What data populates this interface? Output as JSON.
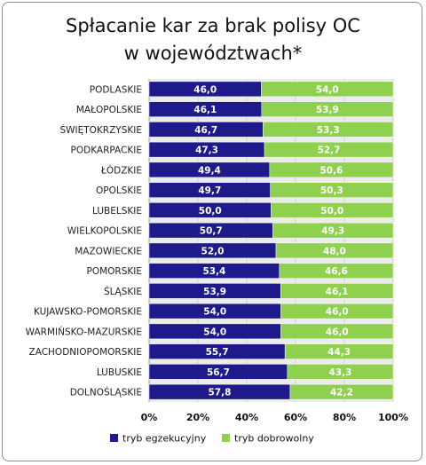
{
  "chart_data": {
    "type": "bar",
    "orientation": "horizontal",
    "stacked": true,
    "title_lines": [
      "Spłacanie kar za brak polisy OC",
      "w województwach*"
    ],
    "categories": [
      "PODLASKIE",
      "MAŁOPOLSKIE",
      "ŚWIĘTOKRZYSKIE",
      "PODKARPACKIE",
      "ŁÓDZKIE",
      "OPOLSKIE",
      "LUBELSKIE",
      "WIELKOPOLSKIE",
      "MAZOWIECKIE",
      "POMORSKIE",
      "ŚLĄSKIE",
      "KUJAWSKO-POMORSKIE",
      "WARMIŃSKO-MAZURSKIE",
      "ZACHODNIOPOMORSKIE",
      "LUBUSKIE",
      "DOLNOŚLĄSKIE"
    ],
    "series": [
      {
        "name": "tryb egzekucyjny",
        "color": "#1f1a8c",
        "values": [
          46.0,
          46.1,
          46.7,
          47.3,
          49.4,
          49.7,
          50.0,
          50.7,
          52.0,
          53.4,
          53.9,
          54.0,
          54.0,
          55.7,
          56.7,
          57.8
        ],
        "labels": [
          "46,0",
          "46,1",
          "46,7",
          "47,3",
          "49,4",
          "49,7",
          "50,0",
          "50,7",
          "52,0",
          "53,4",
          "53,9",
          "54,0",
          "54,0",
          "55,7",
          "56,7",
          "57,8"
        ]
      },
      {
        "name": "tryb dobrowolny",
        "color": "#8fd14f",
        "values": [
          54.0,
          53.9,
          53.3,
          52.7,
          50.6,
          50.3,
          50.0,
          49.3,
          48.0,
          46.6,
          46.1,
          46.0,
          46.0,
          44.3,
          43.3,
          42.2
        ],
        "labels": [
          "54,0",
          "53,9",
          "53,3",
          "52,7",
          "50,6",
          "50,3",
          "50,0",
          "49,3",
          "48,0",
          "46,6",
          "46,1",
          "46,0",
          "46,0",
          "44,3",
          "43,3",
          "42,2"
        ]
      }
    ],
    "xlim": [
      0,
      100
    ],
    "xticks": [
      0,
      20,
      40,
      60,
      80,
      100
    ],
    "xtick_labels": [
      "0%",
      "20%",
      "40%",
      "60%",
      "80%",
      "100%"
    ],
    "grid": "vertical",
    "legend_position": "bottom"
  }
}
